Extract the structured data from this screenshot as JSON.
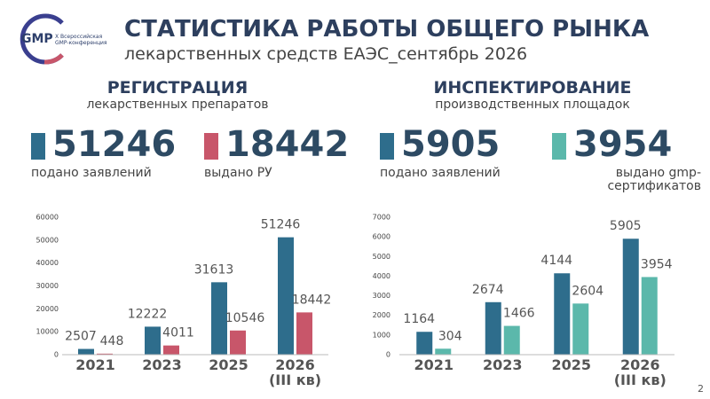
{
  "header": {
    "logo": "GMP",
    "logo_caption": "X Всероссийская GMP-конференция",
    "title": "СТАТИСТИКА РАБОТЫ ОБЩЕГО РЫНКА",
    "subtitle": "лекарственных средств ЕАЭС_сентябрь 2026"
  },
  "page_number": "2",
  "chart_data": [
    {
      "type": "bar",
      "title": "РЕГИСТРАЦИЯ",
      "subtitle": "лекарственных препаратов",
      "categories": [
        "2021",
        "2023",
        "2025",
        "2026 (III кв)"
      ],
      "series": [
        {
          "name": "подано заявлений",
          "color": "#2e6d8c",
          "values": [
            2507,
            12222,
            31613,
            51246
          ]
        },
        {
          "name": "выдано РУ",
          "color": "#c8566a",
          "values": [
            448,
            4011,
            10546,
            18442
          ]
        }
      ],
      "ylim": [
        0,
        60000
      ],
      "yticks": [
        0,
        10000,
        20000,
        30000,
        40000,
        50000,
        60000
      ],
      "grid": false
    },
    {
      "type": "bar",
      "title": "ИНСПЕКТИРОВАНИЕ",
      "subtitle": "производственных площадок",
      "categories": [
        "2021",
        "2023",
        "2025",
        "2026 (III кв)"
      ],
      "series": [
        {
          "name": "подано заявлений",
          "color": "#2e6d8c",
          "values": [
            1164,
            2674,
            4144,
            5905
          ]
        },
        {
          "name": "выдано gmp-сертификатов",
          "color": "#5bb8ab",
          "values": [
            304,
            1466,
            2604,
            3954
          ]
        }
      ],
      "ylim": [
        0,
        7000
      ],
      "yticks": [
        0,
        1000,
        2000,
        3000,
        4000,
        5000,
        6000,
        7000
      ],
      "grid": false
    }
  ]
}
